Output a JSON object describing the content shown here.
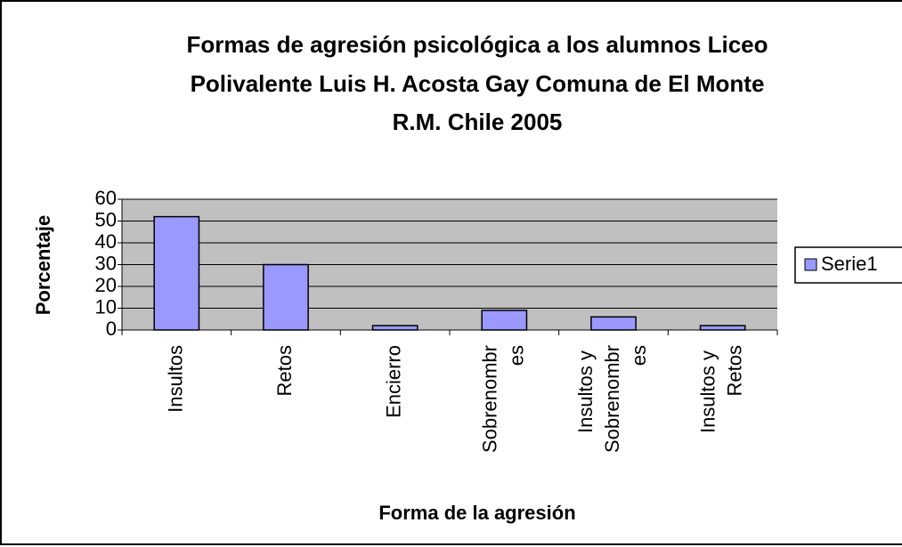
{
  "chart_data": {
    "type": "bar",
    "title": [
      "Formas de agresión psicológica a los alumnos Liceo",
      "Polivalente Luis H. Acosta Gay Comuna de El Monte",
      "R.M. Chile 2005"
    ],
    "x_label": "Forma de la agresión",
    "y_label": "Porcentaje",
    "categories": [
      "Insultos",
      "Retos",
      "Encierro",
      "Sobrenombres",
      "Insultos y Sobrenombres",
      "Insultos y Retos"
    ],
    "series": [
      {
        "name": "Serie1",
        "color": "#9999ff",
        "values": [
          52,
          30,
          2,
          9,
          6,
          2
        ]
      }
    ],
    "ylim": [
      0,
      60
    ],
    "yticks": [
      0,
      10,
      20,
      30,
      40,
      50,
      60
    ],
    "grid": true,
    "legend": "right"
  }
}
